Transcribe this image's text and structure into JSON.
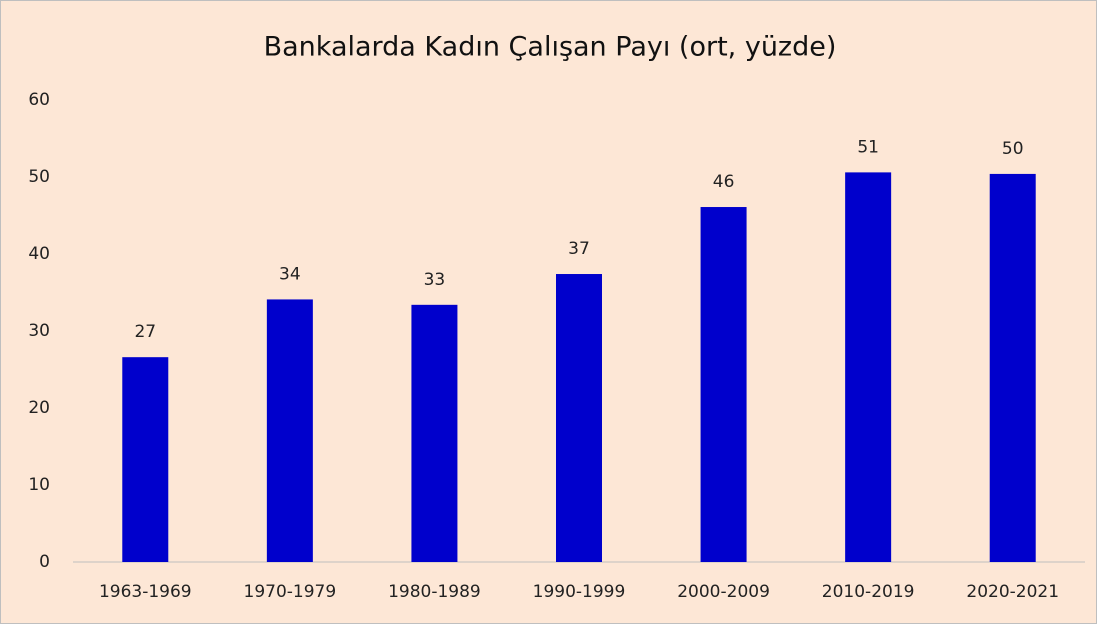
{
  "chart_data": {
    "type": "bar",
    "title": "Bankalarda Kadın Çalışan Payı (ort, yüzde)",
    "categories": [
      "1963-1969",
      "1970-1979",
      "1980-1989",
      "1990-1999",
      "2000-2009",
      "2010-2019",
      "2020-2021"
    ],
    "values": [
      26.6,
      34.1,
      33.4,
      37.4,
      46.1,
      50.6,
      50.4
    ],
    "value_labels": [
      "27",
      "34",
      "33",
      "37",
      "46",
      "51",
      "50"
    ],
    "color": "#0000cc",
    "ylim": [
      0,
      60
    ],
    "yticks": [
      0,
      10,
      20,
      30,
      40,
      50,
      60
    ],
    "grid": false
  }
}
